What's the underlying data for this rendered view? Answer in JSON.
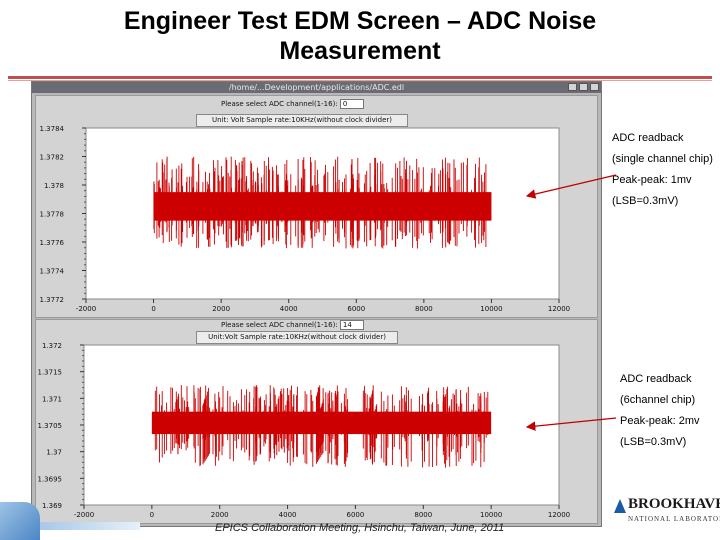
{
  "slide": {
    "title_line1": "Engineer Test EDM Screen – ADC Noise",
    "title_line2": "Measurement",
    "footer": "EPICS Collaboration Meeting, Hsinchu, Taiwan, June, 2011"
  },
  "window": {
    "title": "/home/...Development/applications/ADC.edl"
  },
  "panel1": {
    "select_label": "Please select ADC channel(1-16):",
    "select_value": "0",
    "unit_text": "Unit: Volt  Sample rate:10KHz(without clock divider)"
  },
  "panel2": {
    "select_label": "Please select ADC channel(1-16):",
    "select_value": "14",
    "unit_text": "Unit:Volt   Sample rate:10KHz(without clock divider)"
  },
  "annotation1": {
    "line1": "ADC readback",
    "line2": "(single channel chip)",
    "line3": "Peak-peak: 1mv",
    "line4": "(LSB=0.3mV)"
  },
  "annotation2": {
    "line1": "ADC readback",
    "line2": "(6channel chip)",
    "line3": "Peak-peak: 2mv",
    "line4": "(LSB=0.3mV)"
  },
  "logo": {
    "name": "BROOKHAVEN",
    "subtitle": "NATIONAL LABORATORY"
  },
  "colors": {
    "title_rule": "#c0504d",
    "signal": "#cc0000",
    "window_bg": "#b8b8b8",
    "plot_bg": "#ffffff",
    "arrow": "#c00000"
  },
  "chart_data": [
    {
      "type": "line",
      "title": "",
      "xlabel": "",
      "ylabel": "",
      "xlim": [
        -2000,
        12000
      ],
      "ylim": [
        1.3772,
        1.3784
      ],
      "x_ticks": [
        "-2000",
        "0",
        "2000",
        "4000",
        "6000",
        "8000",
        "10000",
        "12000"
      ],
      "y_ticks": [
        "1.3784",
        "1.3782",
        "1.378",
        "1.3778",
        "1.3776",
        "1.3774",
        "1.3772"
      ],
      "series": [
        {
          "x_range": [
            0,
            10000
          ],
          "band": [
            1.37775,
            1.37795
          ],
          "spike_low": 1.37755,
          "spike_high": 1.3782
        }
      ]
    },
    {
      "type": "line",
      "title": "",
      "xlabel": "",
      "ylabel": "",
      "xlim": [
        -2000,
        12000
      ],
      "ylim": [
        1.369,
        1.372
      ],
      "x_ticks": [
        "-2000",
        "0",
        "2000",
        "4000",
        "6000",
        "8000",
        "10000",
        "12000"
      ],
      "y_ticks": [
        "1.372",
        "1.3715",
        "1.371",
        "1.3705",
        "1.37",
        "1.3695",
        "1.369"
      ],
      "series": [
        {
          "x_range": [
            0,
            10000
          ],
          "band": [
            1.37033,
            1.37075
          ],
          "spike_low": 1.3697,
          "spike_high": 1.37125
        }
      ]
    }
  ]
}
